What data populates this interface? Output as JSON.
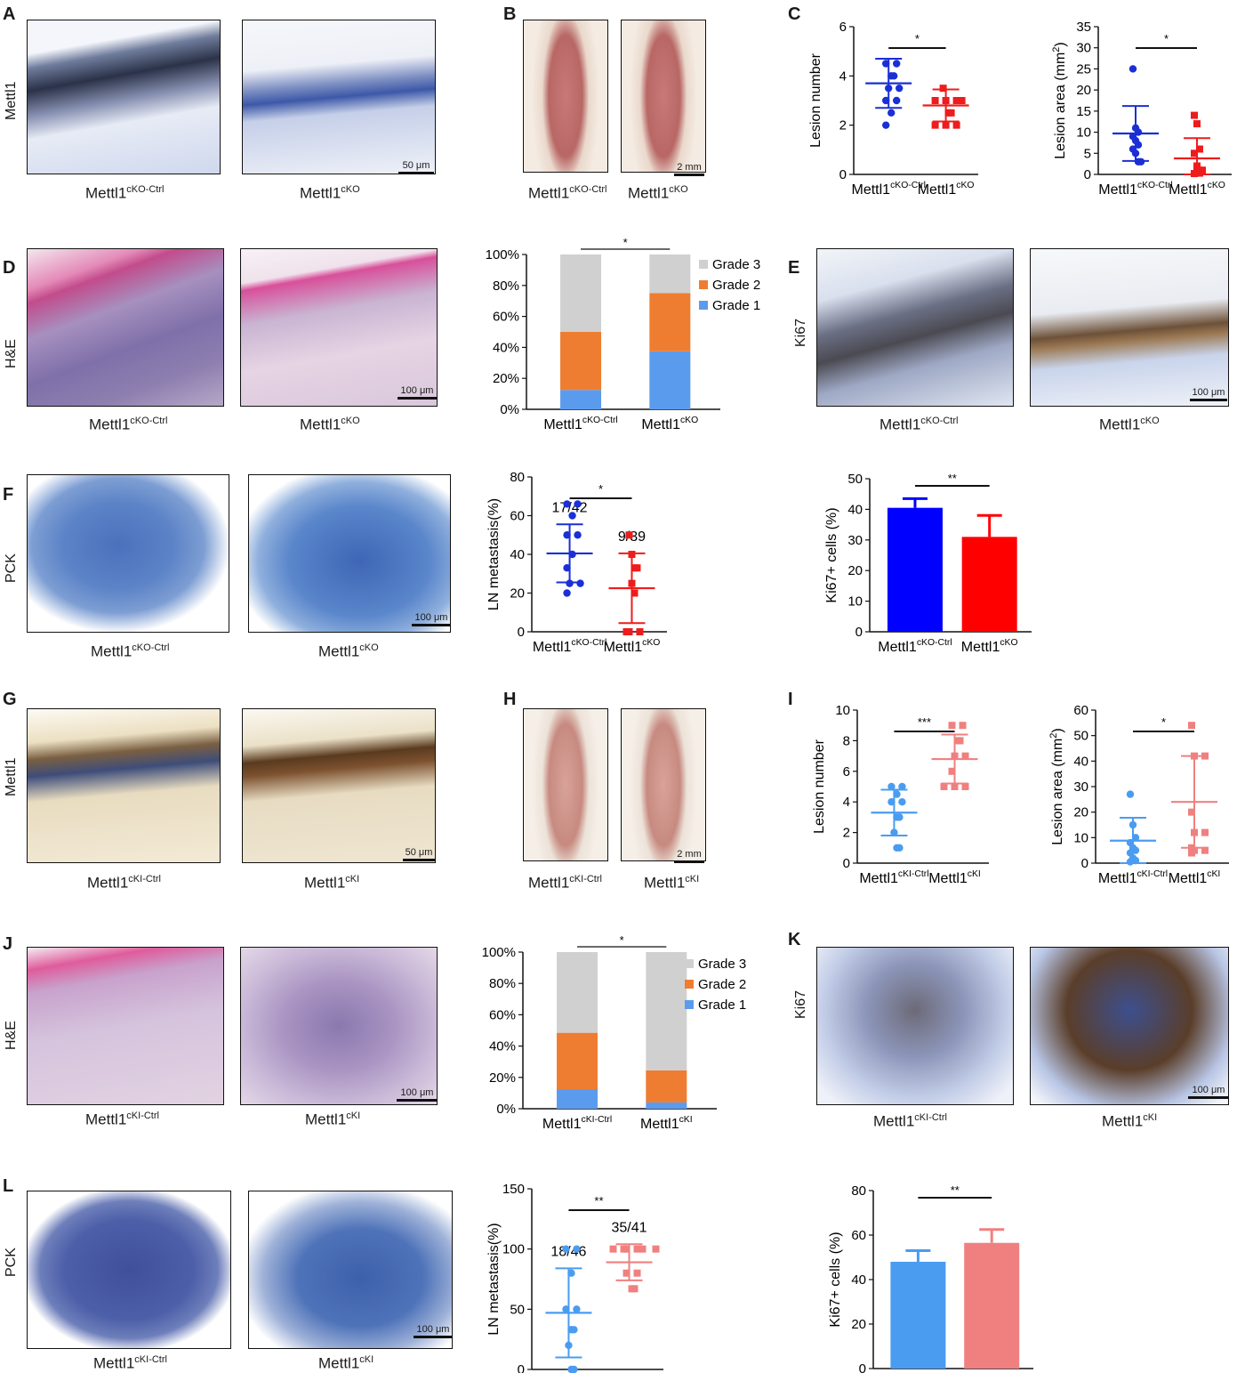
{
  "panels": {
    "A": {
      "letter": "A",
      "row_label": "Mettl1",
      "scale": "50 μm",
      "left": {
        "base": "Mettl1",
        "sup": "cKO-Ctrl"
      },
      "right": {
        "base": "Mettl1",
        "sup": "cKO"
      }
    },
    "B": {
      "letter": "B",
      "scale": "2 mm",
      "left": {
        "base": "Mettl1",
        "sup": "cKO-Ctrl"
      },
      "right": {
        "base": "Mettl1",
        "sup": "cKO"
      }
    },
    "C": {
      "letter": "C"
    },
    "D": {
      "letter": "D",
      "row_label": "H&E",
      "scale": "100 μm",
      "left": {
        "base": "Mettl1",
        "sup": "cKO-Ctrl"
      },
      "right": {
        "base": "Mettl1",
        "sup": "cKO"
      }
    },
    "E": {
      "letter": "E",
      "row_label": "Ki67",
      "scale": "100 μm",
      "left": {
        "base": "Mettl1",
        "sup": "cKO-Ctrl"
      },
      "right": {
        "base": "Mettl1",
        "sup": "cKO"
      }
    },
    "F": {
      "letter": "F",
      "row_label": "PCK",
      "scale": "100 μm",
      "left": {
        "base": "Mettl1",
        "sup": "cKO-Ctrl"
      },
      "right": {
        "base": "Mettl1",
        "sup": "cKO"
      }
    },
    "G": {
      "letter": "G",
      "row_label": "Mettl1",
      "scale": "50 μm",
      "left": {
        "base": "Mettl1",
        "sup": "cKI-Ctrl"
      },
      "right": {
        "base": "Mettl1",
        "sup": "cKI"
      }
    },
    "H": {
      "letter": "H",
      "scale": "2 mm",
      "left": {
        "base": "Mettl1",
        "sup": "cKI-Ctrl"
      },
      "right": {
        "base": "Mettl1",
        "sup": "cKI"
      }
    },
    "I": {
      "letter": "I"
    },
    "J": {
      "letter": "J",
      "row_label": "H&E",
      "scale": "100 μm",
      "left": {
        "base": "Mettl1",
        "sup": "cKI-Ctrl"
      },
      "right": {
        "base": "Mettl1",
        "sup": "cKI"
      }
    },
    "K": {
      "letter": "K",
      "row_label": "Ki67",
      "scale": "100 μm",
      "left": {
        "base": "Mettl1",
        "sup": "cKI-Ctrl"
      },
      "right": {
        "base": "Mettl1",
        "sup": "cKI"
      }
    },
    "L": {
      "letter": "L",
      "row_label": "PCK",
      "scale": "100 μm",
      "left": {
        "base": "Mettl1",
        "sup": "cKI-Ctrl"
      },
      "right": {
        "base": "Mettl1",
        "sup": "cKI"
      }
    }
  },
  "chart_data": [
    {
      "id": "C1",
      "type": "scatter",
      "ylabel": "Lesion number",
      "ylim": [
        0,
        6
      ],
      "ticks": [
        0,
        2,
        4,
        6
      ],
      "sig": "*",
      "groups": [
        {
          "base": "Mettl1",
          "sup": "cKO-Ctrl",
          "color": "#1a2fd6",
          "mean": 3.7,
          "sd": 1.0,
          "points": [
            4.5,
            4.5,
            4,
            4,
            3.5,
            3.5,
            3,
            3,
            2.5,
            2
          ]
        },
        {
          "base": "Mettl1",
          "sup": "cKO",
          "color": "#ee1c1c",
          "mean": 2.8,
          "sd": 0.65,
          "points": [
            3.5,
            3,
            3,
            3,
            3,
            2.5,
            2.5,
            2,
            2,
            2
          ]
        }
      ]
    },
    {
      "id": "C2",
      "type": "scatter",
      "ylabel": "Lesion area (mm",
      "ylabel_sup": "2",
      "ylabel_end": ")",
      "ylim": [
        0,
        35
      ],
      "ticks": [
        0,
        5,
        10,
        15,
        20,
        25,
        30,
        35
      ],
      "sig": "*",
      "groups": [
        {
          "base": "Mettl1",
          "sup": "cKO-Ctrl",
          "color": "#1a2fd6",
          "mean": 9.7,
          "sd": 6.5,
          "points": [
            25,
            11,
            10,
            9,
            8,
            7,
            6,
            5,
            3,
            3
          ]
        },
        {
          "base": "Mettl1",
          "sup": "cKO",
          "color": "#ee1c1c",
          "mean": 3.8,
          "sd": 4.8,
          "points": [
            14,
            12,
            6,
            5,
            2,
            1,
            1,
            0.5,
            0.3,
            0.2
          ]
        }
      ]
    },
    {
      "id": "D",
      "type": "bar",
      "stacked": true,
      "ylim": [
        0,
        100
      ],
      "ticks": [
        "0%",
        "20%",
        "40%",
        "60%",
        "80%",
        "100%"
      ],
      "sig": "*",
      "legend": [
        "Grade 3",
        "Grade 2",
        "Grade 1"
      ],
      "colors": [
        "#d0d0d0",
        "#ee7d31",
        "#5b9bee"
      ],
      "groups": [
        {
          "base": "Mettl1",
          "sup": "cKO-Ctrl",
          "grade1": 12.5,
          "grade2": 37.5,
          "grade3": 50
        },
        {
          "base": "Mettl1",
          "sup": "cKO",
          "grade1": 37.5,
          "grade2": 37.5,
          "grade3": 25
        }
      ]
    },
    {
      "id": "F1",
      "type": "scatter",
      "ylabel": "LN metastasis(%)",
      "ylim": [
        0,
        80
      ],
      "ticks": [
        0,
        20,
        40,
        60,
        80
      ],
      "sig": "*",
      "groups": [
        {
          "base": "Mettl1",
          "sup": "cKO-Ctrl",
          "color": "#1a2fd6",
          "mean": 40.5,
          "sd": 15,
          "fraction": "17/42",
          "points": [
            66,
            66,
            60,
            50,
            50,
            40,
            33,
            25,
            25,
            20
          ]
        },
        {
          "base": "Mettl1",
          "sup": "cKO",
          "color": "#ee1c1c",
          "mean": 22.5,
          "sd": 18,
          "fraction": "9/39",
          "points": [
            50,
            40,
            33,
            33,
            25,
            20,
            0,
            0,
            0
          ]
        }
      ]
    },
    {
      "id": "F2",
      "type": "bar",
      "ylabel": "Ki67+ cells (%)",
      "ylim": [
        0,
        50
      ],
      "ticks": [
        0,
        10,
        20,
        30,
        40,
        50
      ],
      "sig": "**",
      "groups": [
        {
          "base": "Mettl1",
          "sup": "cKO-Ctrl",
          "color": "#0000ff",
          "value": 40.5,
          "err": 3
        },
        {
          "base": "Mettl1",
          "sup": "cKO",
          "color": "#ff0000",
          "value": 31,
          "err": 7
        }
      ]
    },
    {
      "id": "I1",
      "type": "scatter",
      "ylabel": "Lesion number",
      "ylim": [
        0,
        10
      ],
      "ticks": [
        0,
        2,
        4,
        6,
        8,
        10
      ],
      "sig": "***",
      "groups": [
        {
          "base": "Mettl1",
          "sup": "cKI-Ctrl",
          "color": "#4a9cf0",
          "mean": 3.3,
          "sd": 1.5,
          "points": [
            5,
            5,
            4.5,
            4,
            4,
            3,
            3,
            2,
            1,
            1
          ]
        },
        {
          "base": "Mettl1",
          "sup": "cKI",
          "color": "#f08080",
          "mean": 6.8,
          "sd": 1.6,
          "points": [
            9,
            9,
            8,
            8,
            7,
            7,
            6,
            5,
            5,
            5
          ]
        }
      ]
    },
    {
      "id": "I2",
      "type": "scatter",
      "ylabel": "Lesion area (mm",
      "ylabel_sup": "2",
      "ylabel_end": ")",
      "ylim": [
        0,
        60
      ],
      "ticks": [
        0,
        10,
        20,
        30,
        40,
        50,
        60
      ],
      "sig": "*",
      "groups": [
        {
          "base": "Mettl1",
          "sup": "cKI-Ctrl",
          "color": "#4a9cf0",
          "mean": 8.8,
          "sd": 9,
          "points": [
            27,
            15,
            10,
            8,
            6,
            5,
            4,
            2,
            1,
            0.5
          ]
        },
        {
          "base": "Mettl1",
          "sup": "cKI",
          "color": "#f08080",
          "mean": 24,
          "sd": 18,
          "points": [
            54,
            42,
            42,
            20,
            12,
            12,
            6,
            5,
            5,
            4
          ]
        }
      ]
    },
    {
      "id": "J",
      "type": "bar",
      "stacked": true,
      "ylim": [
        0,
        100
      ],
      "ticks": [
        "0%",
        "20%",
        "40%",
        "60%",
        "80%",
        "100%"
      ],
      "sig": "*",
      "legend": [
        "Grade 3",
        "Grade 2",
        "Grade 1"
      ],
      "colors": [
        "#d0d0d0",
        "#ee7d31",
        "#5b9bee"
      ],
      "groups": [
        {
          "base": "Mettl1",
          "sup": "cKI-Ctrl",
          "grade1": 12.5,
          "grade2": 36,
          "grade3": 51.5
        },
        {
          "base": "Mettl1",
          "sup": "cKI",
          "grade1": 4,
          "grade2": 20.5,
          "grade3": 75.5
        }
      ]
    },
    {
      "id": "L1",
      "type": "scatter",
      "ylabel": "LN metastasis(%)",
      "ylim": [
        0,
        150
      ],
      "ticks": [
        0,
        50,
        100,
        150
      ],
      "sig": "**",
      "groups": [
        {
          "base": "Mettl1",
          "sup": "cKI-Ctrl",
          "color": "#4a9cf0",
          "mean": 47,
          "sd": 37,
          "fraction": "18/46",
          "points": [
            100,
            100,
            80,
            50,
            50,
            33,
            33,
            20,
            0,
            0
          ]
        },
        {
          "base": "Mettl1",
          "sup": "cKI",
          "color": "#f08080",
          "mean": 89,
          "sd": 15,
          "fraction": "35/41",
          "points": [
            100,
            100,
            100,
            100,
            100,
            100,
            80,
            80,
            67,
            67
          ]
        }
      ]
    },
    {
      "id": "L2",
      "type": "bar",
      "ylabel": "Ki67+ cells (%)",
      "ylim": [
        0,
        80
      ],
      "ticks": [
        0,
        20,
        40,
        60,
        80
      ],
      "sig": "**",
      "groups": [
        {
          "base": "Mettl1",
          "sup": "cKI-Ctrl",
          "color": "#4a9cf0",
          "value": 48,
          "err": 5
        },
        {
          "base": "Mettl1",
          "sup": "cKI",
          "color": "#f08080",
          "value": 56.5,
          "err": 6
        }
      ]
    }
  ]
}
